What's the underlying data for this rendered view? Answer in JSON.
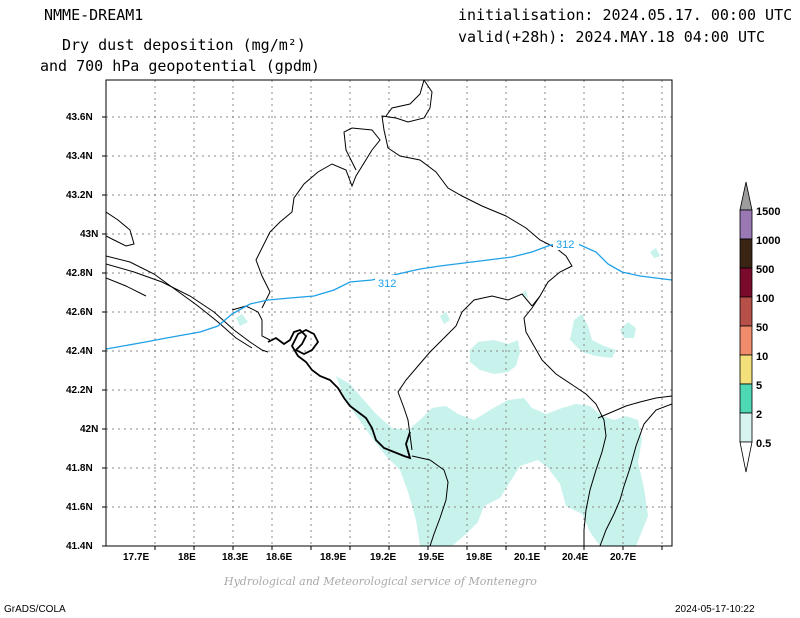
{
  "header": {
    "model": "NMME-DREAM1",
    "title_line1": "Dry dust deposition (mg/m²)",
    "title_line2": "and 700 hPa geopotential (gpdm)",
    "initialisation": "initialisation: 2024.05.17. 00:00 UTC",
    "valid": "valid(+28h): 2024.MAY.18 04:00 UTC"
  },
  "footer": {
    "credit": "Hydrological and Meteorological service of Montenegro",
    "software": "GrADS/COLA",
    "timestamp": "2024-05-17-10:22"
  },
  "map": {
    "lon_ticks": [
      "17.7E",
      "18E",
      "18.3E",
      "18.6E",
      "18.9E",
      "19.2E",
      "19.5E",
      "19.8E",
      "20.1E",
      "20.4E",
      "20.7E"
    ],
    "lat_ticks": [
      "41.4N",
      "41.6N",
      "41.8N",
      "42N",
      "42.2N",
      "42.4N",
      "42.6N",
      "42.8N",
      "43N",
      "43.2N",
      "43.4N",
      "43.6N"
    ],
    "contour_labels": [
      "312",
      "312"
    ],
    "colors": {
      "dust_fill": "#c8f2ec",
      "contour": "#1ea0e8",
      "borders": "#000000",
      "grid": "#888888"
    }
  },
  "colorbar": {
    "labels": [
      "1500",
      "1000",
      "500",
      "100",
      "50",
      "10",
      "5",
      "2",
      "0.5"
    ],
    "colors": [
      "#9c9c9c",
      "#9a78b4",
      "#3a2414",
      "#7a0a2c",
      "#b8504a",
      "#f08c6c",
      "#f4e07a",
      "#4ed8b4",
      "#d8f4f0",
      "#ffffff"
    ]
  }
}
